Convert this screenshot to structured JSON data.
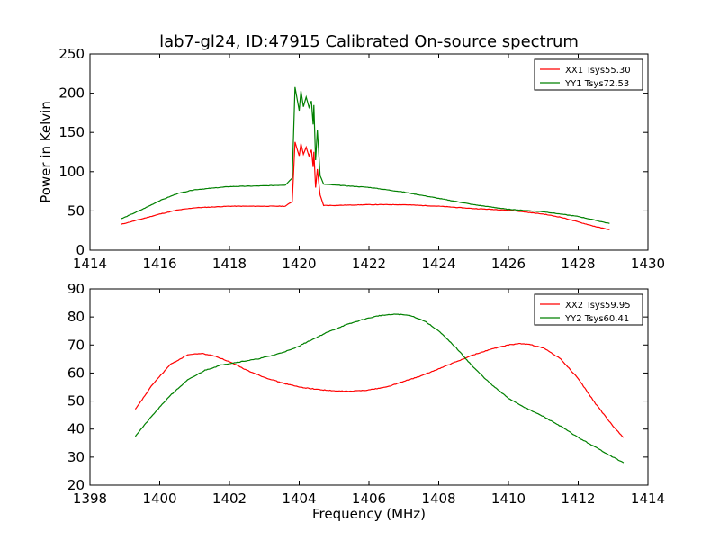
{
  "title": "lab7-gl24, ID:47915 Calibrated On-source spectrum",
  "chart_data": [
    {
      "type": "line",
      "ylabel": "Power in Kelvin",
      "xlabel": "",
      "xlim": [
        1414,
        1430
      ],
      "ylim": [
        0,
        250
      ],
      "xticks": [
        "1414",
        "1416",
        "1418",
        "1420",
        "1422",
        "1424",
        "1426",
        "1428",
        "1430"
      ],
      "yticks": [
        "0",
        "50",
        "100",
        "150",
        "200",
        "250"
      ],
      "legend_position": "top-right",
      "grid": false,
      "series": [
        {
          "name": "XX1 Tsys55.30",
          "color": "#ff0000",
          "x": [
            1414.9,
            1415.5,
            1416.0,
            1416.5,
            1417.0,
            1418.0,
            1419.0,
            1419.6,
            1419.8,
            1419.88,
            1420.0,
            1420.05,
            1420.12,
            1420.2,
            1420.28,
            1420.35,
            1420.4,
            1420.42,
            1420.47,
            1420.52,
            1420.6,
            1420.7,
            1421.0,
            1422.0,
            1423.0,
            1424.0,
            1425.0,
            1426.0,
            1427.0,
            1427.5,
            1428.0,
            1428.5,
            1428.9
          ],
          "y": [
            33,
            40,
            46,
            51,
            54,
            56,
            56,
            56,
            62,
            138,
            120,
            136,
            122,
            131,
            120,
            128,
            106,
            125,
            80,
            103,
            70,
            57,
            57,
            58,
            58,
            56,
            53,
            51,
            46,
            42,
            36,
            30,
            26
          ]
        },
        {
          "name": "YY1 Tsys72.53",
          "color": "#008000",
          "x": [
            1414.9,
            1415.5,
            1416.0,
            1416.5,
            1417.0,
            1418.0,
            1419.0,
            1419.6,
            1419.8,
            1419.88,
            1420.0,
            1420.05,
            1420.12,
            1420.2,
            1420.28,
            1420.35,
            1420.4,
            1420.42,
            1420.47,
            1420.52,
            1420.6,
            1420.7,
            1421.0,
            1422.0,
            1423.0,
            1424.0,
            1425.0,
            1426.0,
            1427.0,
            1427.5,
            1428.0,
            1428.5,
            1428.9
          ],
          "y": [
            40,
            52,
            63,
            72,
            77,
            81,
            82,
            83,
            92,
            208,
            178,
            203,
            183,
            195,
            182,
            190,
            160,
            185,
            115,
            153,
            95,
            84,
            83,
            80,
            74,
            66,
            58,
            52,
            49,
            46,
            43,
            38,
            34
          ]
        }
      ]
    },
    {
      "type": "line",
      "ylabel": "",
      "xlabel": "Frequency (MHz)",
      "xlim": [
        1398,
        1414
      ],
      "ylim": [
        20,
        90
      ],
      "xticks": [
        "1398",
        "1400",
        "1402",
        "1404",
        "1406",
        "1408",
        "1410",
        "1412",
        "1414"
      ],
      "yticks": [
        "20",
        "30",
        "40",
        "50",
        "60",
        "70",
        "80",
        "90"
      ],
      "legend_position": "top-right",
      "grid": false,
      "series": [
        {
          "name": "XX2 Tsys59.95",
          "color": "#ff0000",
          "x": [
            1399.3,
            1399.8,
            1400.3,
            1400.8,
            1401.2,
            1401.6,
            1402.0,
            1402.5,
            1403.0,
            1403.5,
            1404.0,
            1404.5,
            1405.0,
            1405.5,
            1406.0,
            1406.5,
            1407.0,
            1407.5,
            1408.0,
            1408.5,
            1409.0,
            1409.5,
            1410.0,
            1410.3,
            1410.6,
            1411.0,
            1411.5,
            1412.0,
            1412.5,
            1413.0,
            1413.3
          ],
          "y": [
            47,
            56,
            63,
            66.5,
            67,
            66,
            64,
            61,
            58.5,
            56.5,
            55,
            54.2,
            53.6,
            53.5,
            54,
            55,
            57,
            59,
            61.5,
            64,
            66.5,
            68.5,
            70,
            70.5,
            70.2,
            69,
            65,
            58,
            49,
            41,
            37
          ]
        },
        {
          "name": "YY2 Tsys60.41",
          "color": "#008000",
          "x": [
            1399.3,
            1399.8,
            1400.3,
            1400.8,
            1401.3,
            1401.8,
            1402.3,
            1402.8,
            1403.3,
            1403.8,
            1404.3,
            1404.8,
            1405.3,
            1405.8,
            1406.3,
            1406.8,
            1407.2,
            1407.6,
            1408.0,
            1408.5,
            1409.0,
            1409.5,
            1410.0,
            1410.5,
            1411.0,
            1411.5,
            1412.0,
            1412.5,
            1413.0,
            1413.3
          ],
          "y": [
            37.5,
            45,
            52,
            57.5,
            61,
            63,
            64,
            65,
            66.5,
            68.5,
            71.5,
            74.5,
            77,
            79,
            80.5,
            81,
            80.5,
            78.5,
            75,
            69,
            62,
            56,
            51,
            47.5,
            44.5,
            41,
            37,
            33.5,
            30,
            28
          ]
        }
      ]
    }
  ]
}
